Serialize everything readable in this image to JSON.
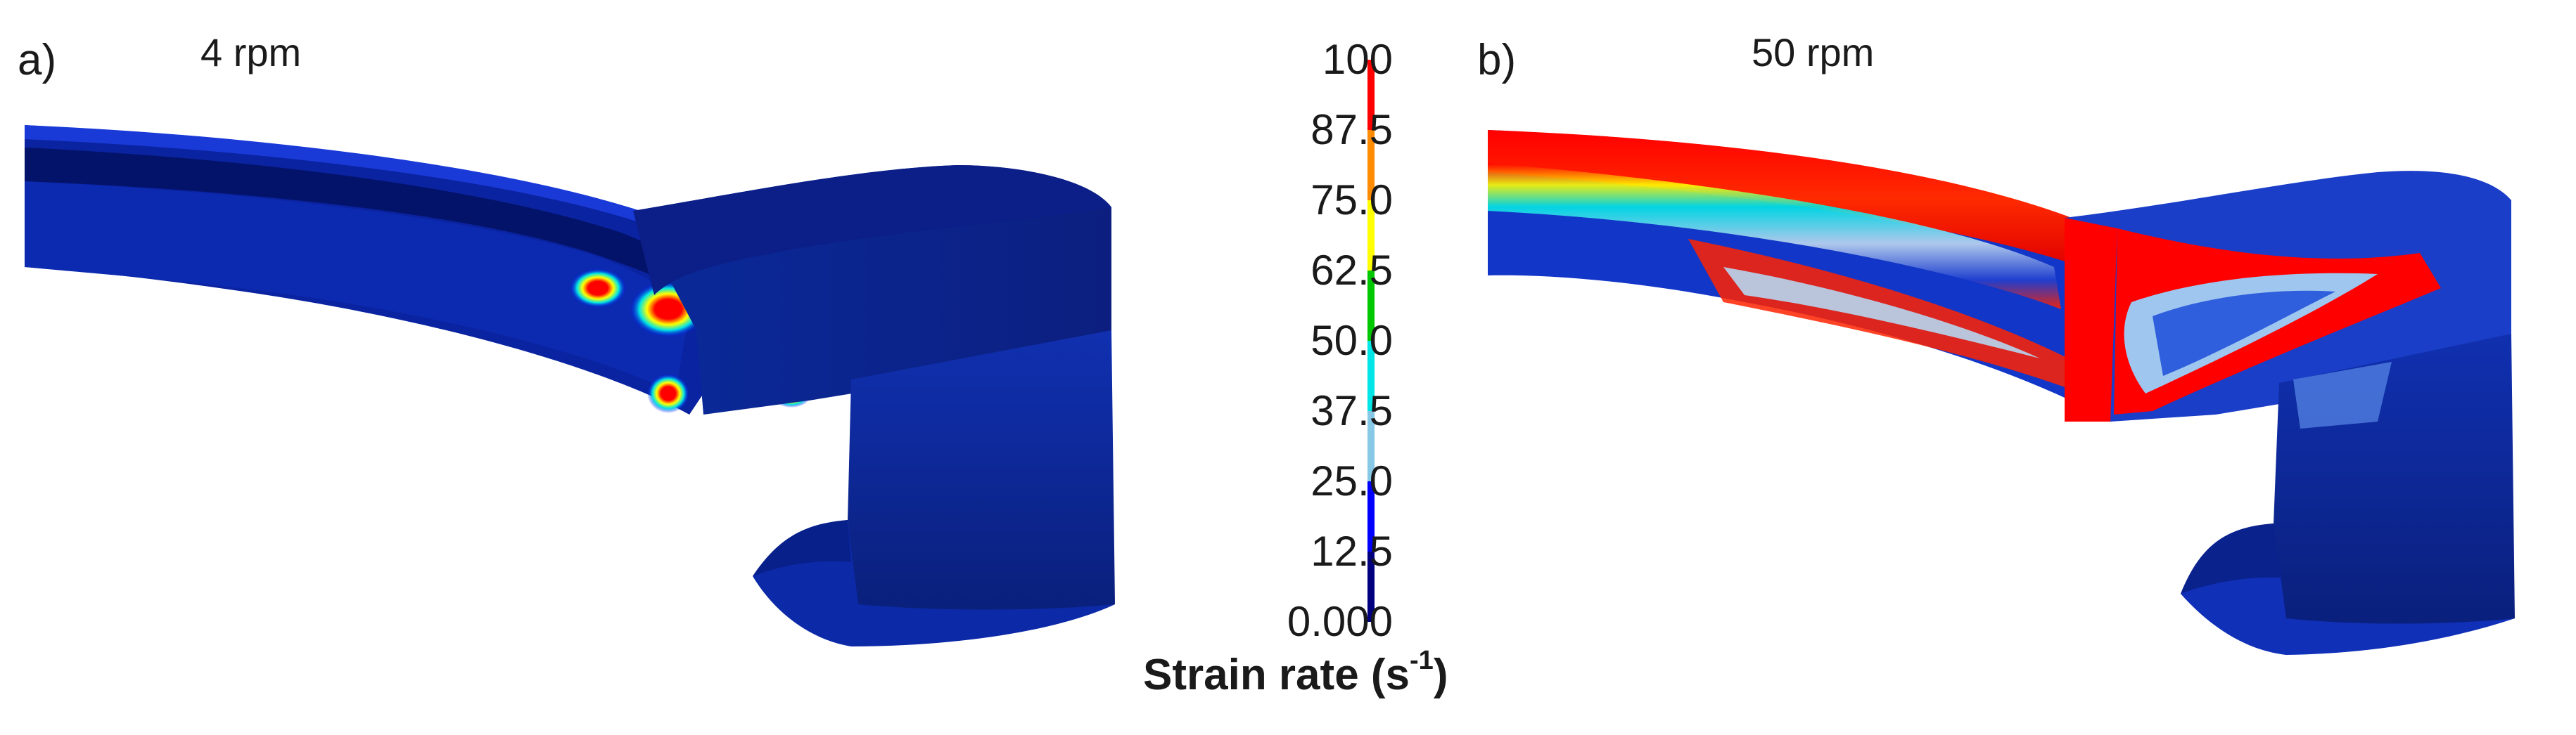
{
  "panels": [
    {
      "label": "a)",
      "speed": "4 rpm"
    },
    {
      "label": "b)",
      "speed": "50 rpm"
    }
  ],
  "colorbar": {
    "ticks": [
      "100",
      "87.5",
      "75.0",
      "62.5",
      "50.0",
      "37.5",
      "25.0",
      "12.5",
      "0.000"
    ],
    "title_main": "Strain rate (s",
    "title_sup": "-1",
    "title_close": ")",
    "colors": [
      "#ff0000",
      "#ff8c00",
      "#ffff00",
      "#00c800",
      "#00e5e5",
      "#87c8e6",
      "#0000ff",
      "#00007f"
    ]
  }
}
